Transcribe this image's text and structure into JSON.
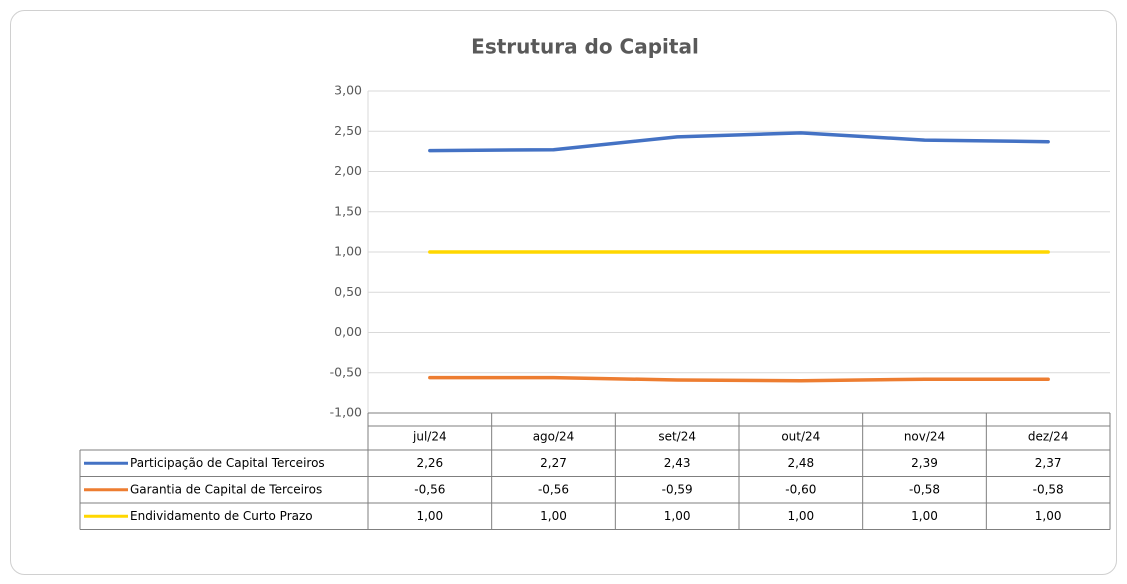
{
  "chart_data": {
    "type": "line",
    "title": "Estrutura do Capital",
    "categories": [
      "jul/24",
      "ago/24",
      "set/24",
      "out/24",
      "nov/24",
      "dez/24"
    ],
    "series": [
      {
        "name": "Participação de Capital Terceiros",
        "color": "#4472c4",
        "values": [
          2.26,
          2.27,
          2.43,
          2.48,
          2.39,
          2.37
        ],
        "value_labels": [
          "2,26",
          "2,27",
          "2,43",
          "2,48",
          "2,39",
          "2,37"
        ]
      },
      {
        "name": "Garantia de Capital de Terceiros",
        "color": "#ed7d31",
        "values": [
          -0.56,
          -0.56,
          -0.59,
          -0.6,
          -0.58,
          -0.58
        ],
        "value_labels": [
          "-0,56",
          "-0,56",
          "-0,59",
          "-0,60",
          "-0,58",
          "-0,58"
        ]
      },
      {
        "name": "Endividamento de Curto Prazo",
        "color": "#ffd700",
        "values": [
          1.0,
          1.0,
          1.0,
          1.0,
          1.0,
          1.0
        ],
        "value_labels": [
          "1,00",
          "1,00",
          "1,00",
          "1,00",
          "1,00",
          "1,00"
        ]
      }
    ],
    "ylim": [
      -1,
      3
    ],
    "yticks": [
      {
        "value": -1,
        "label": "-1,00"
      },
      {
        "value": -0.5,
        "label": "-0,50"
      },
      {
        "value": 0,
        "label": "0,00"
      },
      {
        "value": 0.5,
        "label": "0,50"
      },
      {
        "value": 1,
        "label": "1,00"
      },
      {
        "value": 1.5,
        "label": "1,50"
      },
      {
        "value": 2,
        "label": "2,00"
      },
      {
        "value": 2.5,
        "label": "2,50"
      },
      {
        "value": 3,
        "label": "3,00"
      }
    ],
    "grid": true
  }
}
